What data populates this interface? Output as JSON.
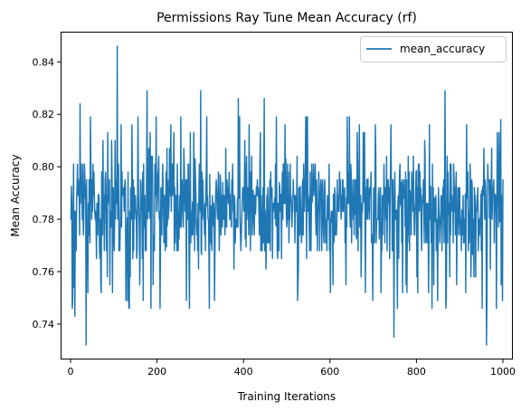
{
  "chart_data": {
    "type": "line",
    "title": "Permissions Ray Tune Mean Accuracy (rf)",
    "xlabel": "Training Iterations",
    "ylabel": "Mean Accuracy",
    "xlim": [
      -23,
      1023
    ],
    "ylim": [
      0.7265,
      0.8515
    ],
    "xticks": [
      0,
      200,
      400,
      600,
      800,
      1000
    ],
    "yticks": [
      0.74,
      0.76,
      0.78,
      0.8,
      0.82,
      0.84
    ],
    "ytick_labels": [
      "0.74",
      "0.76",
      "0.78",
      "0.80",
      "0.82",
      "0.84"
    ],
    "grid": false,
    "legend_position": "top-right",
    "series": [
      {
        "name": "mean_accuracy",
        "color": "#1f77b4",
        "x_start": 1,
        "x_end": 1000,
        "baseline": 0.787,
        "levels": [
          0.746,
          0.749,
          0.752,
          0.755,
          0.758,
          0.761,
          0.765,
          0.768,
          0.771,
          0.774,
          0.777,
          0.78,
          0.783,
          0.786,
          0.789,
          0.792,
          0.795,
          0.798,
          0.801,
          0.804,
          0.807,
          0.81,
          0.813,
          0.816,
          0.819
        ],
        "spikes": [
          {
            "x": 8,
            "y": 0.754
          },
          {
            "x": 10,
            "y": 0.743
          },
          {
            "x": 22,
            "y": 0.824
          },
          {
            "x": 36,
            "y": 0.732
          },
          {
            "x": 108,
            "y": 0.846
          },
          {
            "x": 177,
            "y": 0.829
          },
          {
            "x": 301,
            "y": 0.829
          },
          {
            "x": 388,
            "y": 0.826
          },
          {
            "x": 448,
            "y": 0.826
          },
          {
            "x": 748,
            "y": 0.735
          },
          {
            "x": 866,
            "y": 0.829
          },
          {
            "x": 962,
            "y": 0.732
          },
          {
            "x": 985,
            "y": 0.746
          },
          {
            "x": 995,
            "y": 0.818
          }
        ]
      }
    ]
  }
}
